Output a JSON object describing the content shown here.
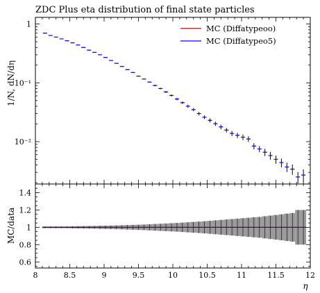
{
  "chart_data": {
    "type": "line",
    "title": "ZDC Plus eta distribution of final state particles",
    "xlabel": "η",
    "ylabel_main": "1/N, dN/dη",
    "ylabel_ratio": "MC/data",
    "x_ticks": [
      8,
      8.5,
      9,
      9.5,
      10,
      10.5,
      11,
      11.5,
      12
    ],
    "x_tick_labels": [
      "8",
      "8.5",
      "9",
      "9.5",
      "10",
      "10.5",
      "11",
      "11.5",
      "12"
    ],
    "xlim": [
      8,
      12
    ],
    "main_yscale": "log",
    "main_ylim": [
      0.0019,
      1.3
    ],
    "main_y_ticks": [
      1,
      0.1,
      0.01
    ],
    "main_y_tick_labels": [
      "1",
      "10⁻¹",
      "10⁻²"
    ],
    "ratio_ylim": [
      0.53,
      1.5
    ],
    "ratio_y_ticks": [
      0.6,
      0.8,
      1,
      1.2,
      1.4
    ],
    "ratio_y_tick_labels": [
      "0.6",
      "0.8",
      "1",
      "1.2",
      "1.4"
    ],
    "legend_position": "top-right",
    "bins": [
      [
        8.1,
        8.18
      ],
      [
        8.18,
        8.26
      ],
      [
        8.26,
        8.34
      ],
      [
        8.34,
        8.42
      ],
      [
        8.42,
        8.5
      ],
      [
        8.5,
        8.58
      ],
      [
        8.58,
        8.66
      ],
      [
        8.66,
        8.74
      ],
      [
        8.74,
        8.82
      ],
      [
        8.82,
        8.9
      ],
      [
        8.9,
        8.98
      ],
      [
        8.98,
        9.06
      ],
      [
        9.06,
        9.14
      ],
      [
        9.14,
        9.22
      ],
      [
        9.22,
        9.3
      ],
      [
        9.3,
        9.38
      ],
      [
        9.38,
        9.46
      ],
      [
        9.46,
        9.54
      ],
      [
        9.54,
        9.62
      ],
      [
        9.62,
        9.7
      ],
      [
        9.7,
        9.78
      ],
      [
        9.78,
        9.86
      ],
      [
        9.86,
        9.94
      ],
      [
        9.94,
        10.02
      ],
      [
        10.02,
        10.1
      ],
      [
        10.1,
        10.18
      ],
      [
        10.18,
        10.26
      ],
      [
        10.26,
        10.34
      ],
      [
        10.34,
        10.42
      ],
      [
        10.42,
        10.5
      ],
      [
        10.5,
        10.58
      ],
      [
        10.58,
        10.66
      ],
      [
        10.66,
        10.74
      ],
      [
        10.74,
        10.82
      ],
      [
        10.82,
        10.9
      ],
      [
        10.9,
        10.98
      ],
      [
        10.98,
        11.06
      ],
      [
        11.06,
        11.14
      ],
      [
        11.14,
        11.22
      ],
      [
        11.22,
        11.3
      ],
      [
        11.3,
        11.38
      ],
      [
        11.38,
        11.46
      ],
      [
        11.46,
        11.54
      ],
      [
        11.54,
        11.62
      ],
      [
        11.62,
        11.7
      ],
      [
        11.7,
        11.78
      ],
      [
        11.78,
        11.86
      ],
      [
        11.86,
        11.94
      ]
    ],
    "series": [
      {
        "name": "MC (Diffatypeoo)",
        "color": "#cc0000",
        "values": [
          0.7,
          0.64,
          0.6,
          0.56,
          0.52,
          0.48,
          0.44,
          0.4,
          0.36,
          0.33,
          0.3,
          0.27,
          0.24,
          0.215,
          0.19,
          0.168,
          0.15,
          0.13,
          0.116,
          0.103,
          0.09,
          0.08,
          0.07,
          0.061,
          0.053,
          0.046,
          0.04,
          0.035,
          0.03,
          0.026,
          0.023,
          0.0202,
          0.0178,
          0.0157,
          0.0138,
          0.0128,
          0.0119,
          0.0111,
          0.0084,
          0.0075,
          0.0066,
          0.0058,
          0.005,
          0.0044,
          0.0037,
          0.0034,
          0.0025,
          0.0027
        ]
      },
      {
        "name": "MC (Diffatypeo5)",
        "color": "#0000ff",
        "values": [
          0.7,
          0.64,
          0.6,
          0.56,
          0.52,
          0.48,
          0.44,
          0.4,
          0.36,
          0.33,
          0.3,
          0.27,
          0.24,
          0.215,
          0.19,
          0.168,
          0.15,
          0.13,
          0.116,
          0.103,
          0.09,
          0.08,
          0.07,
          0.061,
          0.053,
          0.046,
          0.04,
          0.035,
          0.03,
          0.026,
          0.023,
          0.0202,
          0.0178,
          0.0157,
          0.0138,
          0.0128,
          0.0119,
          0.0111,
          0.0084,
          0.0075,
          0.0066,
          0.0058,
          0.005,
          0.0044,
          0.0037,
          0.0034,
          0.0025,
          0.0027
        ]
      }
    ],
    "ratio_values": [
      1,
      1,
      1,
      1,
      1,
      1,
      1,
      1,
      1,
      1,
      1,
      1,
      1,
      1,
      1,
      1,
      1,
      1,
      1,
      1,
      1,
      1,
      1,
      1,
      1,
      1,
      1,
      1,
      1,
      1,
      1,
      1,
      1,
      1,
      1,
      1,
      1,
      1,
      1,
      1,
      1,
      1,
      1,
      1,
      1,
      1,
      1,
      1
    ],
    "ratio_band_halfwidth": [
      0.01,
      0.01,
      0.01,
      0.01,
      0.01,
      0.012,
      0.013,
      0.014,
      0.015,
      0.016,
      0.018,
      0.019,
      0.02,
      0.022,
      0.024,
      0.026,
      0.028,
      0.03,
      0.032,
      0.035,
      0.038,
      0.041,
      0.044,
      0.047,
      0.05,
      0.054,
      0.058,
      0.062,
      0.066,
      0.07,
      0.075,
      0.08,
      0.085,
      0.09,
      0.095,
      0.1,
      0.105,
      0.11,
      0.115,
      0.12,
      0.128,
      0.135,
      0.142,
      0.15,
      0.158,
      0.165,
      0.2,
      0.2
    ],
    "marker_error_fraction": [
      0,
      0,
      0,
      0,
      0,
      0,
      0,
      0,
      0,
      0,
      0,
      0,
      0,
      0,
      0,
      0,
      0,
      0,
      0,
      0,
      0.03,
      0.03,
      0.04,
      0.04,
      0.05,
      0.05,
      0.06,
      0.06,
      0.07,
      0.07,
      0.08,
      0.08,
      0.09,
      0.09,
      0.1,
      0.1,
      0.11,
      0.11,
      0.12,
      0.12,
      0.14,
      0.15,
      0.16,
      0.17,
      0.18,
      0.2,
      0.22,
      0.25
    ]
  }
}
